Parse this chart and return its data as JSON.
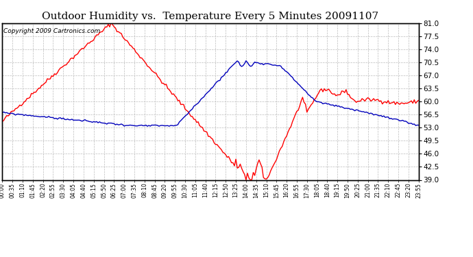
{
  "title": "Outdoor Humidity vs.  Temperature Every 5 Minutes 20091107",
  "copyright": "Copyright 2009 Cartronics.com",
  "ymin": 39.0,
  "ymax": 81.0,
  "yticks": [
    39.0,
    42.5,
    46.0,
    49.5,
    53.0,
    56.5,
    60.0,
    63.5,
    67.0,
    70.5,
    74.0,
    77.5,
    81.0
  ],
  "red_color": "#ff0000",
  "blue_color": "#0000bb",
  "bg_color": "#ffffff",
  "plot_bg": "#ffffff",
  "grid_color": "#bbbbbb",
  "title_fontsize": 11,
  "copyright_fontsize": 6.5
}
